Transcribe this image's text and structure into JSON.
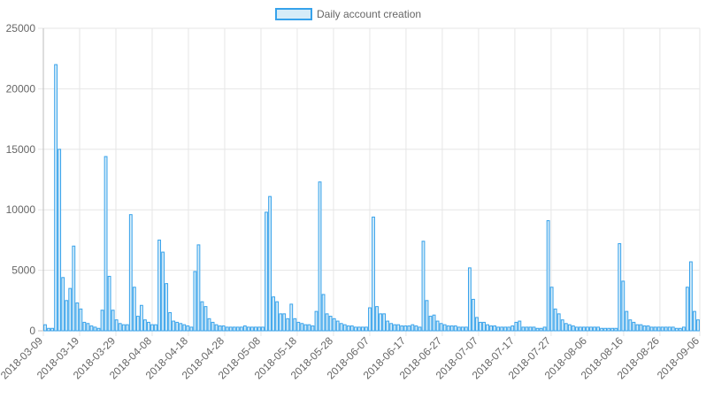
{
  "chart_data": {
    "type": "bar",
    "title": "",
    "xlabel": "",
    "ylabel": "",
    "legend": {
      "position": "top",
      "entries": [
        "Daily account creation"
      ]
    },
    "grid": true,
    "colors": {
      "bar_fill": "#d6ecf8",
      "bar_stroke": "#36a2eb",
      "grid": "#e6e6e6",
      "axis_text": "#666666"
    },
    "ylim": [
      0,
      25000
    ],
    "y_ticks": [
      0,
      5000,
      10000,
      15000,
      20000,
      25000
    ],
    "x_start": "2018-03-09",
    "x_end": "2018-09-06",
    "x_tick_labels": [
      "2018-03-09",
      "2018-03-19",
      "2018-03-29",
      "2018-04-08",
      "2018-04-18",
      "2018-04-28",
      "2018-05-08",
      "2018-05-18",
      "2018-05-28",
      "2018-06-07",
      "2018-06-17",
      "2018-06-27",
      "2018-07-07",
      "2018-07-17",
      "2018-07-27",
      "2018-08-06",
      "2018-08-16",
      "2018-08-26",
      "2018-09-06"
    ],
    "series": [
      {
        "name": "Daily account creation",
        "values": [
          500,
          200,
          200,
          22000,
          15000,
          4400,
          2500,
          3500,
          7000,
          2300,
          1800,
          700,
          600,
          400,
          300,
          200,
          1700,
          14400,
          4500,
          1700,
          900,
          600,
          500,
          500,
          9600,
          3600,
          1200,
          2100,
          900,
          700,
          500,
          500,
          7500,
          6500,
          3900,
          1500,
          800,
          700,
          600,
          500,
          400,
          300,
          4900,
          7100,
          2400,
          2000,
          1000,
          700,
          500,
          400,
          400,
          300,
          300,
          300,
          300,
          300,
          400,
          300,
          300,
          300,
          300,
          300,
          9800,
          11100,
          2800,
          2400,
          1400,
          1400,
          1000,
          2200,
          1000,
          700,
          600,
          500,
          500,
          400,
          1600,
          12300,
          3000,
          1400,
          1200,
          1000,
          800,
          600,
          500,
          400,
          400,
          300,
          300,
          300,
          300,
          1900,
          9400,
          2000,
          1400,
          1400,
          800,
          600,
          500,
          500,
          400,
          400,
          400,
          500,
          400,
          300,
          7400,
          2500,
          1200,
          1300,
          800,
          600,
          500,
          400,
          400,
          400,
          300,
          300,
          300,
          5200,
          2600,
          1100,
          700,
          700,
          500,
          400,
          400,
          300,
          300,
          300,
          300,
          400,
          700,
          800,
          300,
          300,
          300,
          300,
          200,
          200,
          300,
          9100,
          3600,
          1800,
          1400,
          900,
          600,
          500,
          400,
          300,
          300,
          300,
          300,
          300,
          300,
          300,
          200,
          200,
          200,
          200,
          200,
          7200,
          4100,
          1600,
          900,
          700,
          500,
          500,
          400,
          400,
          300,
          300,
          300,
          300,
          300,
          300,
          300,
          200,
          200,
          300,
          3600,
          5700,
          1600,
          900
        ]
      }
    ]
  }
}
